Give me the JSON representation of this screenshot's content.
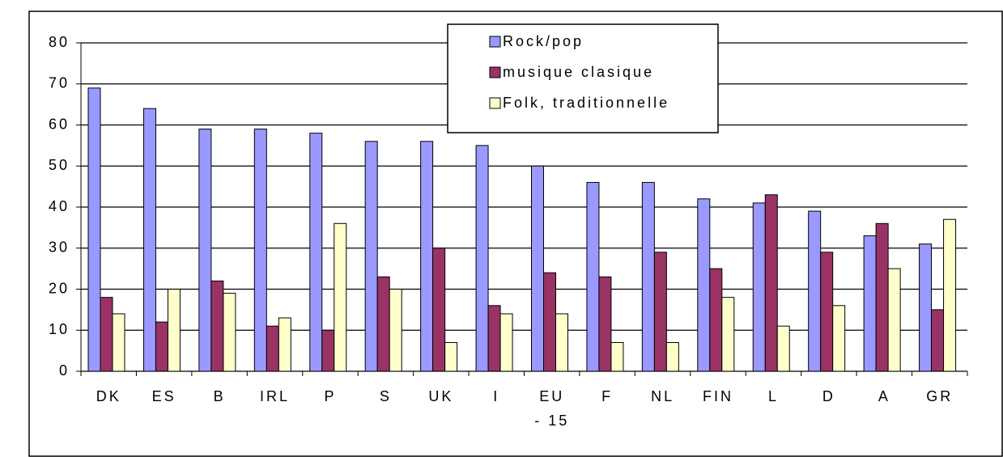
{
  "chart_data": {
    "type": "bar",
    "categories": [
      "DK",
      "ES",
      "B",
      "IRL",
      "P",
      "S",
      "UK",
      "I",
      "EU\n- 15",
      "F",
      "NL",
      "FIN",
      "L",
      "D",
      "A",
      "GR"
    ],
    "series": [
      {
        "name": "Rock/pop",
        "color": "#9999ff",
        "values": [
          69,
          64,
          59,
          59,
          58,
          56,
          56,
          55,
          50,
          46,
          46,
          42,
          41,
          39,
          33,
          31
        ]
      },
      {
        "name": "musique clasique",
        "color": "#993366",
        "values": [
          18,
          12,
          22,
          11,
          10,
          23,
          30,
          16,
          24,
          23,
          29,
          25,
          43,
          29,
          36,
          15
        ]
      },
      {
        "name": "Folk, traditionnelle",
        "color": "#ffffcc",
        "values": [
          14,
          20,
          19,
          13,
          36,
          20,
          7,
          14,
          14,
          7,
          7,
          18,
          11,
          16,
          25,
          37
        ]
      }
    ],
    "ylim": [
      0,
      80
    ],
    "yticks": [
      0,
      10,
      20,
      30,
      40,
      50,
      60,
      70,
      80
    ],
    "grid": true,
    "legend": "top"
  }
}
